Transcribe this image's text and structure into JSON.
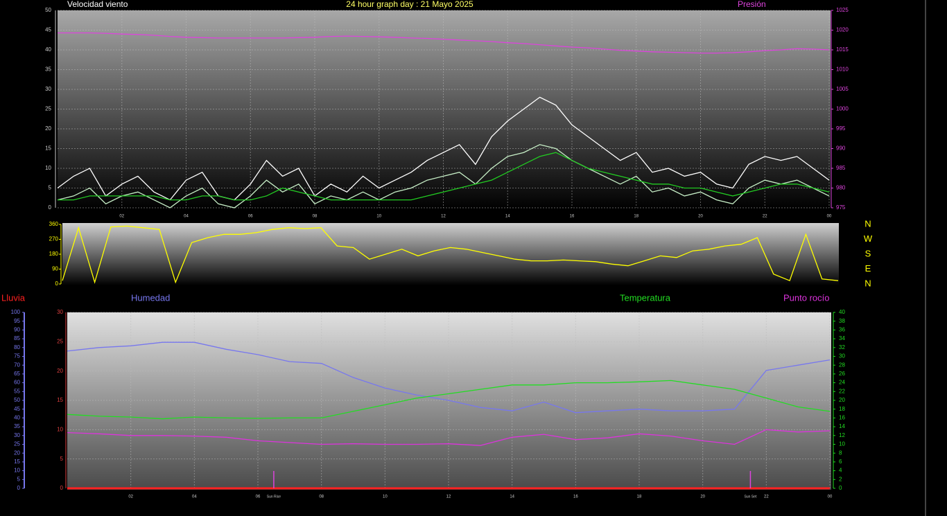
{
  "chart_data": [
    {
      "type": "line",
      "title": "24 hour graph day : 21 Mayo 2025",
      "x": [
        0,
        0.5,
        1,
        1.5,
        2,
        2.5,
        3,
        3.5,
        4,
        4.5,
        5,
        5.5,
        6,
        6.5,
        7,
        7.5,
        8,
        8.5,
        9,
        9.5,
        10,
        10.5,
        11,
        11.5,
        12,
        12.5,
        13,
        13.5,
        14,
        14.5,
        15,
        15.5,
        16,
        16.5,
        17,
        17.5,
        18,
        18.5,
        19,
        19.5,
        20,
        20.5,
        21,
        21.5,
        22,
        22.5,
        23,
        23.5,
        24
      ],
      "xlim": [
        0,
        24
      ],
      "xticks": [
        {
          "value": 2,
          "label": "02"
        },
        {
          "value": 4,
          "label": "04"
        },
        {
          "value": 6,
          "label": "06"
        },
        {
          "value": 8,
          "label": "08"
        },
        10,
        12,
        14,
        16,
        18,
        20,
        22,
        {
          "value": 24,
          "label": "00"
        }
      ],
      "ylim": [
        0,
        50
      ],
      "yticks": [
        0,
        5,
        10,
        15,
        20,
        25,
        30,
        35,
        40,
        45,
        50
      ],
      "y2lim": [
        975,
        1025
      ],
      "y2ticks": [
        975,
        980,
        985,
        990,
        995,
        1000,
        1005,
        1010,
        1015,
        1020,
        1025
      ],
      "grid": true,
      "series": [
        {
          "name": "Velocidad viento",
          "color": "#ffffff",
          "values": [
            5,
            8,
            10,
            3,
            6,
            8,
            4,
            2,
            7,
            9,
            3,
            2,
            6,
            12,
            8,
            10,
            3,
            6,
            4,
            8,
            5,
            7,
            9,
            12,
            14,
            16,
            11,
            18,
            22,
            25,
            28,
            26,
            21,
            18,
            15,
            12,
            14,
            9,
            10,
            8,
            9,
            6,
            5,
            11,
            13,
            12,
            13,
            10,
            7
          ]
        },
        {
          "color": "#c8f0c8",
          "values": [
            2,
            3,
            5,
            1,
            3,
            4,
            2,
            0,
            3,
            5,
            1,
            0,
            3,
            7,
            4,
            6,
            1,
            3,
            2,
            4,
            2,
            4,
            5,
            7,
            8,
            9,
            6,
            10,
            13,
            14,
            16,
            15,
            12,
            10,
            8,
            6,
            8,
            4,
            5,
            3,
            4,
            2,
            1,
            5,
            7,
            6,
            7,
            5,
            3
          ]
        },
        {
          "color": "#22cc22",
          "values": [
            2,
            2,
            3,
            3,
            3,
            3,
            3,
            2,
            2,
            3,
            3,
            2,
            2,
            3,
            5,
            4,
            3,
            2,
            2,
            2,
            2,
            2,
            2,
            3,
            4,
            5,
            6,
            7,
            9,
            11,
            13,
            14,
            12,
            10,
            9,
            8,
            7,
            6,
            6,
            5,
            5,
            4,
            3,
            4,
            5,
            6,
            6,
            5,
            4
          ]
        },
        {
          "name": "Presión",
          "color": "#dd44dd",
          "axis": "y2",
          "values": [
            1019.3,
            1019.3,
            1019.3,
            1019.2,
            1019,
            1018.9,
            1018.7,
            1018.4,
            1018.2,
            1018.1,
            1018,
            1018,
            1018,
            1018,
            1018,
            1018.1,
            1018.2,
            1018.4,
            1018.5,
            1018.4,
            1018.3,
            1018.2,
            1018,
            1017.9,
            1017.7,
            1017.5,
            1017.3,
            1017.1,
            1016.8,
            1016.6,
            1016.3,
            1016,
            1015.7,
            1015.5,
            1015.2,
            1014.9,
            1014.7,
            1014.5,
            1014.4,
            1014.3,
            1014.2,
            1014.2,
            1014.3,
            1014.5,
            1014.8,
            1015,
            1015.3,
            1015.2,
            1015
          ]
        }
      ]
    },
    {
      "type": "line",
      "x": [
        0,
        0.5,
        1,
        1.5,
        2,
        2.5,
        3,
        3.5,
        4,
        4.5,
        5,
        5.5,
        6,
        6.5,
        7,
        7.5,
        8,
        8.5,
        9,
        9.5,
        10,
        10.5,
        11,
        11.5,
        12,
        12.5,
        13,
        13.5,
        14,
        14.5,
        15,
        15.5,
        16,
        16.5,
        17,
        17.5,
        18,
        18.5,
        19,
        19.5,
        20,
        20.5,
        21,
        21.5,
        22,
        22.5,
        23,
        23.5,
        24
      ],
      "xlim": [
        0,
        24
      ],
      "ylim": [
        0,
        360
      ],
      "yticks": [
        0,
        90,
        180,
        270,
        360
      ],
      "y2lim": [
        0,
        360
      ],
      "y2ticks": [
        {
          "value": 360,
          "label": "N"
        },
        {
          "value": 270,
          "label": "W"
        },
        {
          "value": 180,
          "label": "S"
        },
        {
          "value": 90,
          "label": "E"
        },
        {
          "value": 0,
          "label": "N"
        }
      ],
      "series": [
        {
          "color": "#ffff00",
          "values": [
            20,
            340,
            10,
            345,
            350,
            340,
            330,
            10,
            250,
            280,
            300,
            300,
            310,
            330,
            340,
            335,
            340,
            230,
            220,
            150,
            180,
            210,
            170,
            200,
            220,
            210,
            190,
            170,
            150,
            140,
            140,
            145,
            140,
            135,
            120,
            110,
            140,
            170,
            160,
            200,
            210,
            230,
            240,
            280,
            60,
            20,
            300,
            30,
            20
          ]
        }
      ]
    },
    {
      "type": "line",
      "x": [
        0,
        1,
        2,
        3,
        4,
        5,
        6,
        7,
        8,
        9,
        10,
        11,
        12,
        13,
        14,
        15,
        16,
        17,
        18,
        19,
        20,
        21,
        22,
        23,
        24
      ],
      "xlim": [
        0,
        24
      ],
      "xticks": [
        {
          "value": 2,
          "label": "02"
        },
        {
          "value": 4,
          "label": "04"
        },
        {
          "value": 6,
          "label": "06"
        },
        {
          "value": 8,
          "label": "08"
        },
        10,
        12,
        14,
        16,
        18,
        20,
        22,
        {
          "value": 24,
          "label": "00"
        }
      ],
      "ylim": [
        0,
        30
      ],
      "yticks": [
        0,
        5,
        10,
        15,
        20,
        25,
        30
      ],
      "y2lim": [
        0,
        40
      ],
      "y2ticks": [
        0,
        2,
        4,
        6,
        8,
        10,
        12,
        14,
        16,
        18,
        20,
        22,
        24,
        26,
        28,
        30,
        32,
        34,
        36,
        38,
        40
      ],
      "y3lim": [
        0,
        100
      ],
      "y3ticks": [
        0,
        5,
        10,
        15,
        20,
        25,
        30,
        35,
        40,
        45,
        50,
        55,
        60,
        65,
        70,
        75,
        80,
        85,
        90,
        95,
        100
      ],
      "grid": true,
      "series": [
        {
          "name": "Lluvia",
          "color": "#ff2020",
          "values": [
            0,
            0,
            0,
            0,
            0,
            0,
            0,
            0,
            0,
            0,
            0,
            0,
            0,
            0,
            0,
            0,
            0,
            0,
            0,
            0,
            0,
            0,
            0,
            0,
            0
          ]
        },
        {
          "name": "Humedad",
          "color": "#7777ee",
          "axis": "y3",
          "values": [
            78,
            80,
            81,
            83,
            83,
            79,
            76,
            72,
            71,
            63,
            57,
            53,
            50,
            46,
            44,
            49,
            43,
            44,
            45,
            44,
            44,
            45,
            67,
            70,
            73
          ]
        },
        {
          "name": "Temperatura",
          "color": "#22dd22",
          "axis": "y2",
          "values": [
            16.8,
            16.4,
            16.2,
            15.8,
            16.2,
            16,
            15.9,
            16,
            16,
            17.5,
            19,
            20.5,
            21.5,
            22.5,
            23.5,
            23.5,
            24,
            24,
            24.2,
            24.5,
            23.5,
            22.5,
            20.5,
            18.5,
            17.5
          ]
        },
        {
          "name": "Punto rocío",
          "color": "#dd33dd",
          "values": [
            9.5,
            9.3,
            9,
            9,
            8.9,
            8.7,
            8.1,
            7.8,
            7.5,
            7.6,
            7.5,
            7.5,
            7.6,
            7.3,
            8.7,
            9.2,
            8.3,
            8.6,
            9.3,
            8.9,
            8.1,
            7.5,
            10,
            9.6,
            9.8
          ]
        }
      ],
      "annotations": [
        {
          "x": 6.5,
          "label": "Sun Rise"
        },
        {
          "x": 21.5,
          "label": "Sun Set"
        }
      ]
    }
  ]
}
